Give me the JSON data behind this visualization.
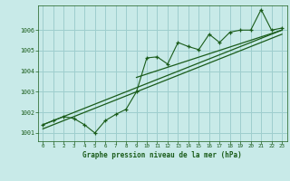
{
  "title": "Graphe pression niveau de la mer (hPa)",
  "bg_color": "#c8eae8",
  "grid_color": "#9ecece",
  "line_color": "#1a5c1a",
  "xlim": [
    -0.5,
    23.5
  ],
  "ylim": [
    1000.6,
    1007.2
  ],
  "yticks": [
    1001,
    1002,
    1003,
    1004,
    1005,
    1006
  ],
  "xticks": [
    0,
    1,
    2,
    3,
    4,
    5,
    6,
    7,
    8,
    9,
    10,
    11,
    12,
    13,
    14,
    15,
    16,
    17,
    18,
    19,
    20,
    21,
    22,
    23
  ],
  "main_data": [
    [
      0,
      1001.4
    ],
    [
      1,
      1001.6
    ],
    [
      2,
      1001.8
    ],
    [
      3,
      1001.7
    ],
    [
      4,
      1001.4
    ],
    [
      5,
      1001.0
    ],
    [
      6,
      1001.6
    ],
    [
      7,
      1001.9
    ],
    [
      8,
      1002.15
    ],
    [
      9,
      1003.0
    ],
    [
      10,
      1004.65
    ],
    [
      11,
      1004.7
    ],
    [
      12,
      1004.35
    ],
    [
      13,
      1005.4
    ],
    [
      14,
      1005.2
    ],
    [
      15,
      1005.05
    ],
    [
      16,
      1005.8
    ],
    [
      17,
      1005.4
    ],
    [
      18,
      1005.9
    ],
    [
      19,
      1006.0
    ],
    [
      20,
      1006.0
    ],
    [
      21,
      1007.0
    ],
    [
      22,
      1006.0
    ],
    [
      23,
      1006.1
    ]
  ],
  "trend_line1": [
    [
      0,
      1001.2
    ],
    [
      23,
      1005.8
    ]
  ],
  "trend_line2": [
    [
      0,
      1001.4
    ],
    [
      23,
      1006.0
    ]
  ],
  "trend_line3": [
    [
      9,
      1003.7
    ],
    [
      23,
      1006.0
    ]
  ]
}
